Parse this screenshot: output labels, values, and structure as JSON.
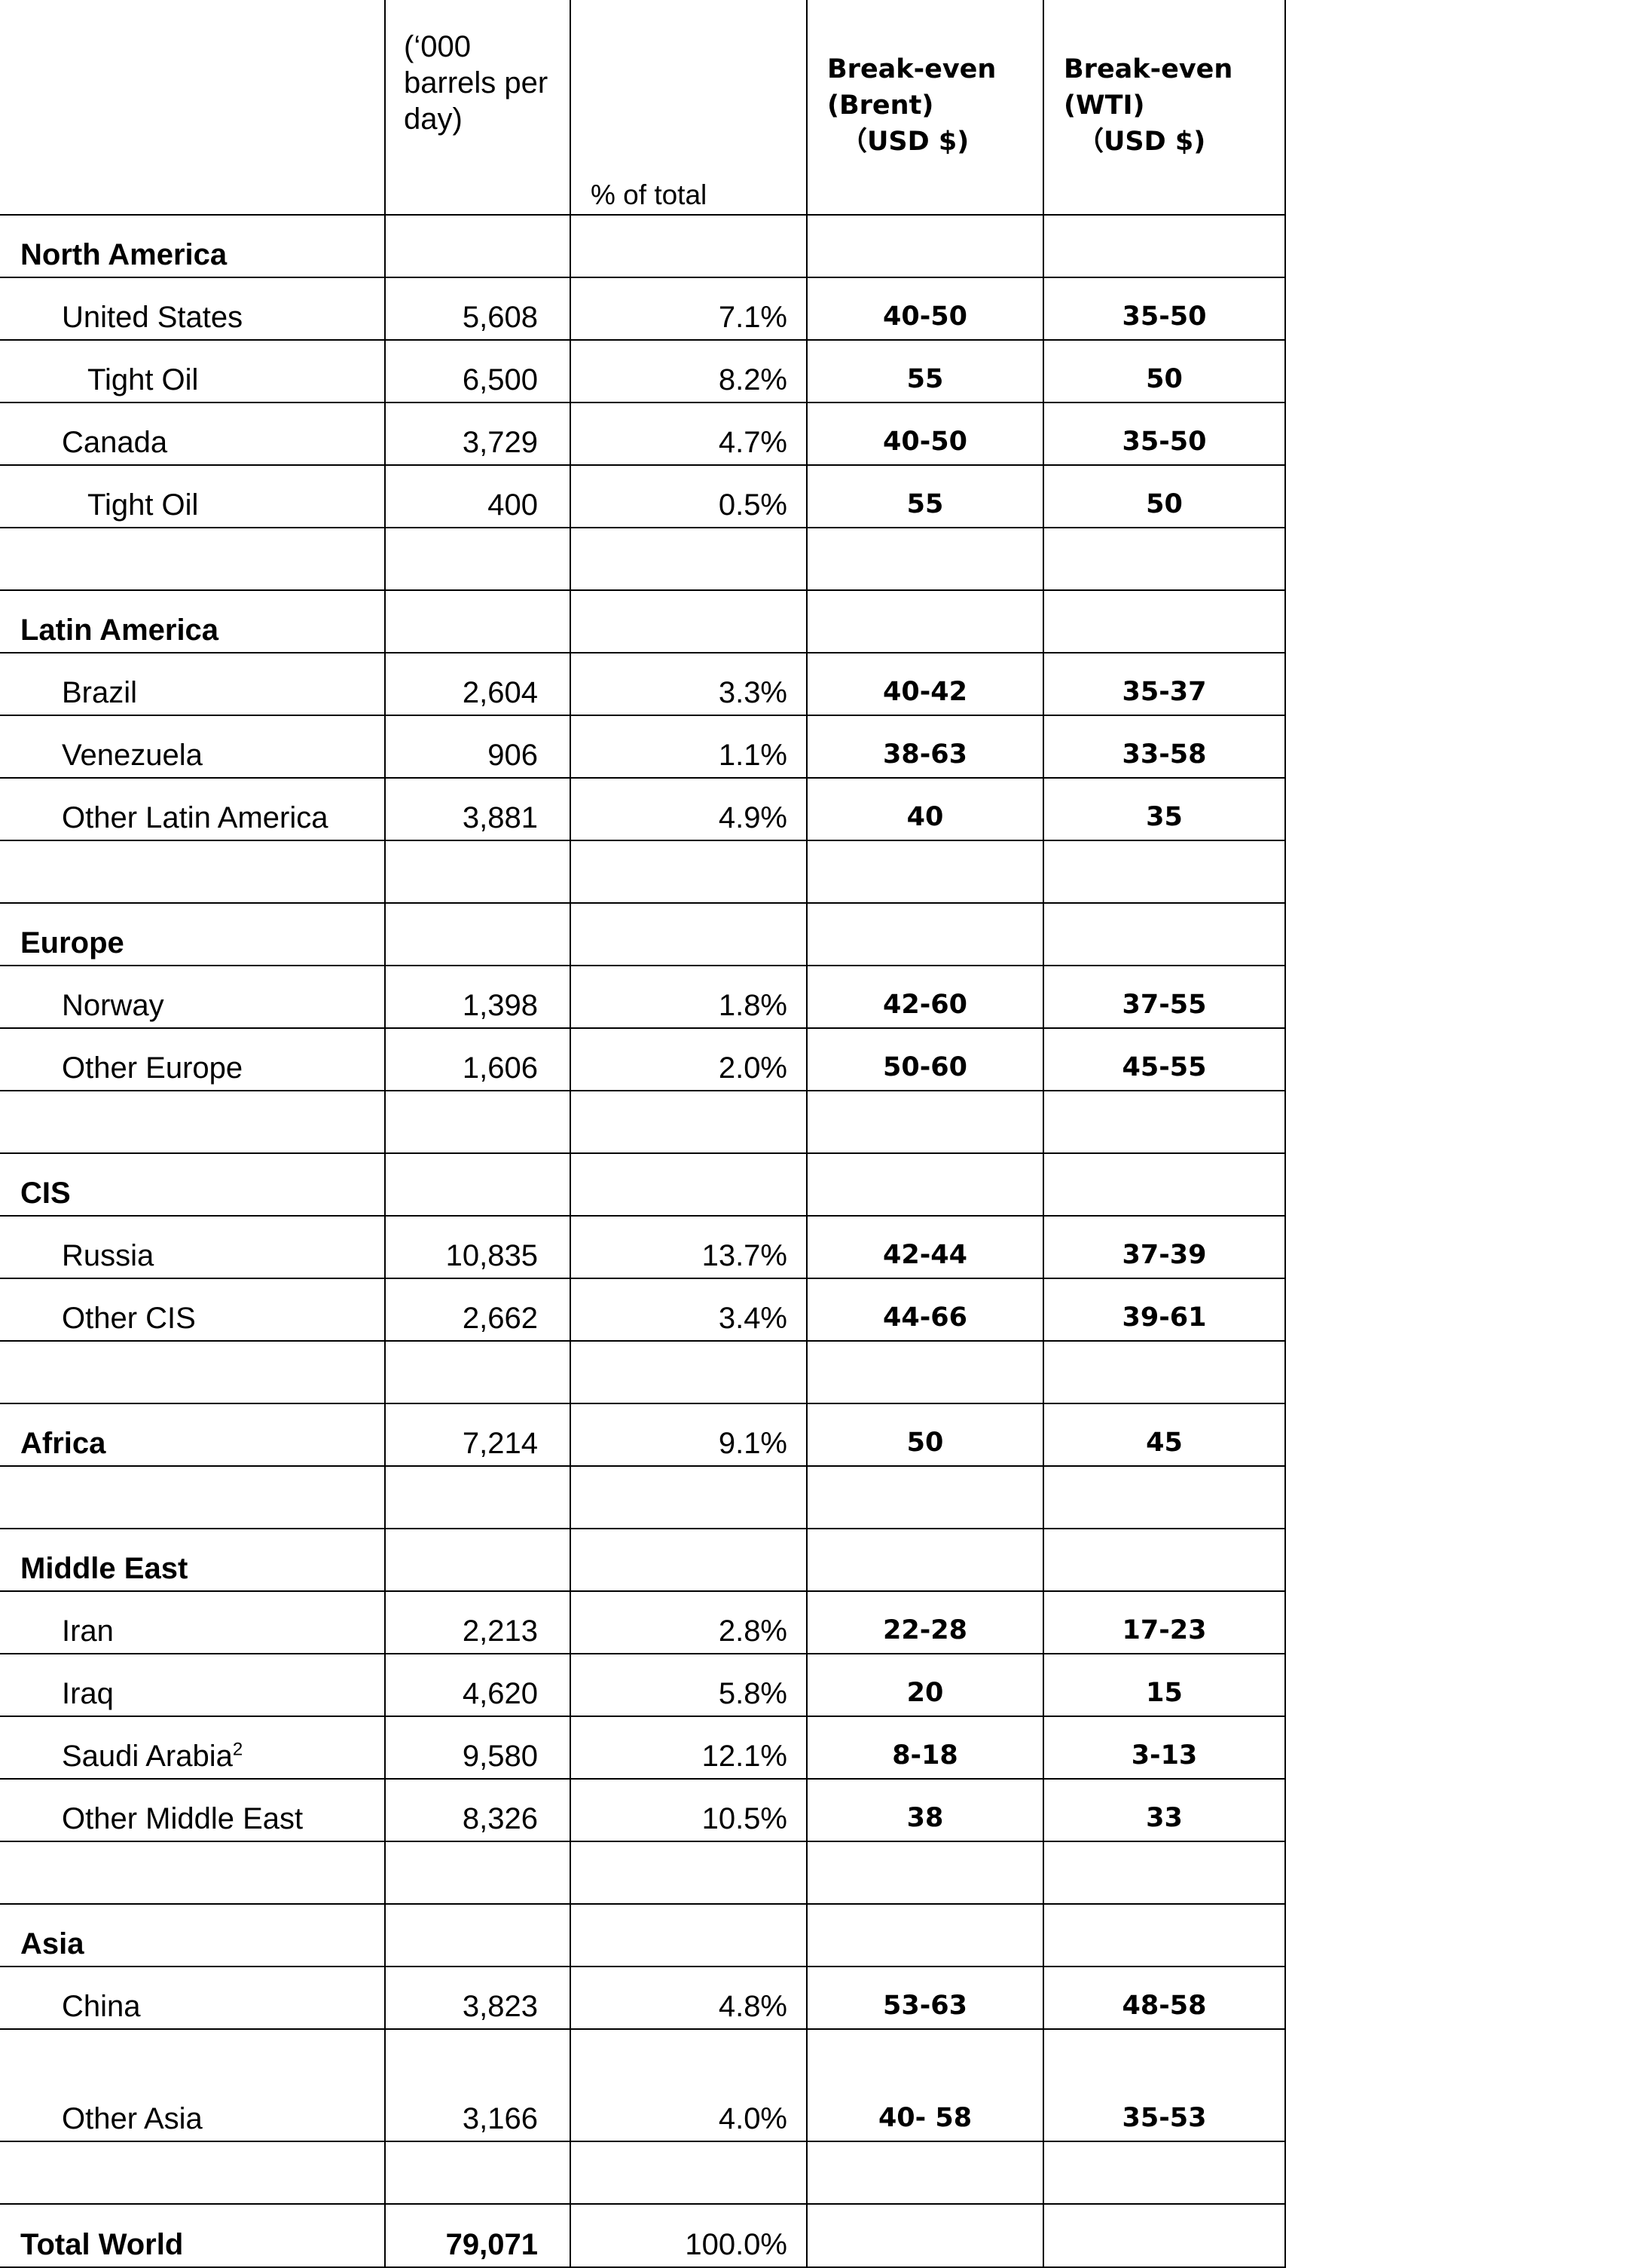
{
  "header": {
    "units": "(‘000 barrels per day)",
    "pct_total": "% of total",
    "brent_line1": "Break-even",
    "brent_line2": "(Brent)",
    "brent_line3": "（USD $)",
    "wti_line1": "Break-even",
    "wti_line2": "(WTI)",
    "wti_line3": "（USD $)"
  },
  "rows": [
    {
      "name": "North America",
      "type": "region"
    },
    {
      "name": "United States",
      "type": "country",
      "bpd": "5,608",
      "pct": "7.1%",
      "brent": "40-50",
      "wti": "35-50"
    },
    {
      "name": "Tight Oil",
      "type": "sub",
      "bpd": "6,500",
      "pct": "8.2%",
      "brent": "55",
      "wti": "50"
    },
    {
      "name": "Canada",
      "type": "country",
      "bpd": "3,729",
      "pct": "4.7%",
      "brent": "40-50",
      "wti": "35-50"
    },
    {
      "name": "Tight Oil",
      "type": "sub",
      "bpd": "400",
      "pct": "0.5%",
      "brent": "55",
      "wti": "50"
    },
    {
      "type": "blank"
    },
    {
      "name": "Latin America",
      "type": "region"
    },
    {
      "name": "Brazil",
      "type": "country",
      "bpd": "2,604",
      "pct": "3.3%",
      "brent": "40-42",
      "wti": "35-37"
    },
    {
      "name": "Venezuela",
      "type": "country",
      "bpd": "906",
      "pct": "1.1%",
      "brent": "38-63",
      "wti": "33-58"
    },
    {
      "name": "Other Latin America",
      "type": "country",
      "bpd": "3,881",
      "pct": "4.9%",
      "brent": "40",
      "wti": "35"
    },
    {
      "type": "blank"
    },
    {
      "name": "Europe",
      "type": "region"
    },
    {
      "name": "Norway",
      "type": "country",
      "bpd": "1,398",
      "pct": "1.8%",
      "brent": "42-60",
      "wti": "37-55"
    },
    {
      "name": "Other Europe",
      "type": "country",
      "bpd": "1,606",
      "pct": "2.0%",
      "brent": "50-60",
      "wti": "45-55"
    },
    {
      "type": "blank"
    },
    {
      "name": "CIS",
      "type": "region"
    },
    {
      "name": "Russia",
      "type": "country",
      "bpd": "10,835",
      "pct": "13.7%",
      "brent": "42-44",
      "wti": "37-39"
    },
    {
      "name": "Other CIS",
      "type": "country",
      "bpd": "2,662",
      "pct": "3.4%",
      "brent": "44-66",
      "wti": "39-61"
    },
    {
      "type": "blank"
    },
    {
      "name": "Africa",
      "type": "region",
      "bpd": "7,214",
      "pct": "9.1%",
      "brent": "50",
      "wti": "45"
    },
    {
      "type": "blank"
    },
    {
      "name": "Middle East",
      "type": "region"
    },
    {
      "name": "Iran",
      "type": "country",
      "bpd": "2,213",
      "pct": "2.8%",
      "brent": "22-28",
      "wti": "17-23"
    },
    {
      "name": "Iraq",
      "type": "country",
      "bpd": "4,620",
      "pct": "5.8%",
      "brent": "20",
      "wti": "15"
    },
    {
      "name": "Saudi Arabia",
      "sup": "2",
      "type": "country",
      "bpd": "9,580",
      "pct": "12.1%",
      "brent": "8-18",
      "wti": "3-13"
    },
    {
      "name": "Other Middle East",
      "type": "country",
      "bpd": "8,326",
      "pct": "10.5%",
      "brent": "38",
      "wti": "33"
    },
    {
      "type": "blank"
    },
    {
      "name": "Asia",
      "type": "region"
    },
    {
      "name": "China",
      "type": "country",
      "bpd": "3,823",
      "pct": "4.8%",
      "brent": "53-63",
      "wti": "48-58"
    },
    {
      "name": "Other Asia",
      "type": "country",
      "tall": true,
      "bpd": "3,166",
      "pct": "4.0%",
      "brent": "40- 58",
      "wti": "35-53"
    },
    {
      "type": "blank"
    },
    {
      "name": "Total World",
      "type": "region",
      "total": true,
      "bpd": "79,071",
      "pct": "100.0%"
    }
  ]
}
